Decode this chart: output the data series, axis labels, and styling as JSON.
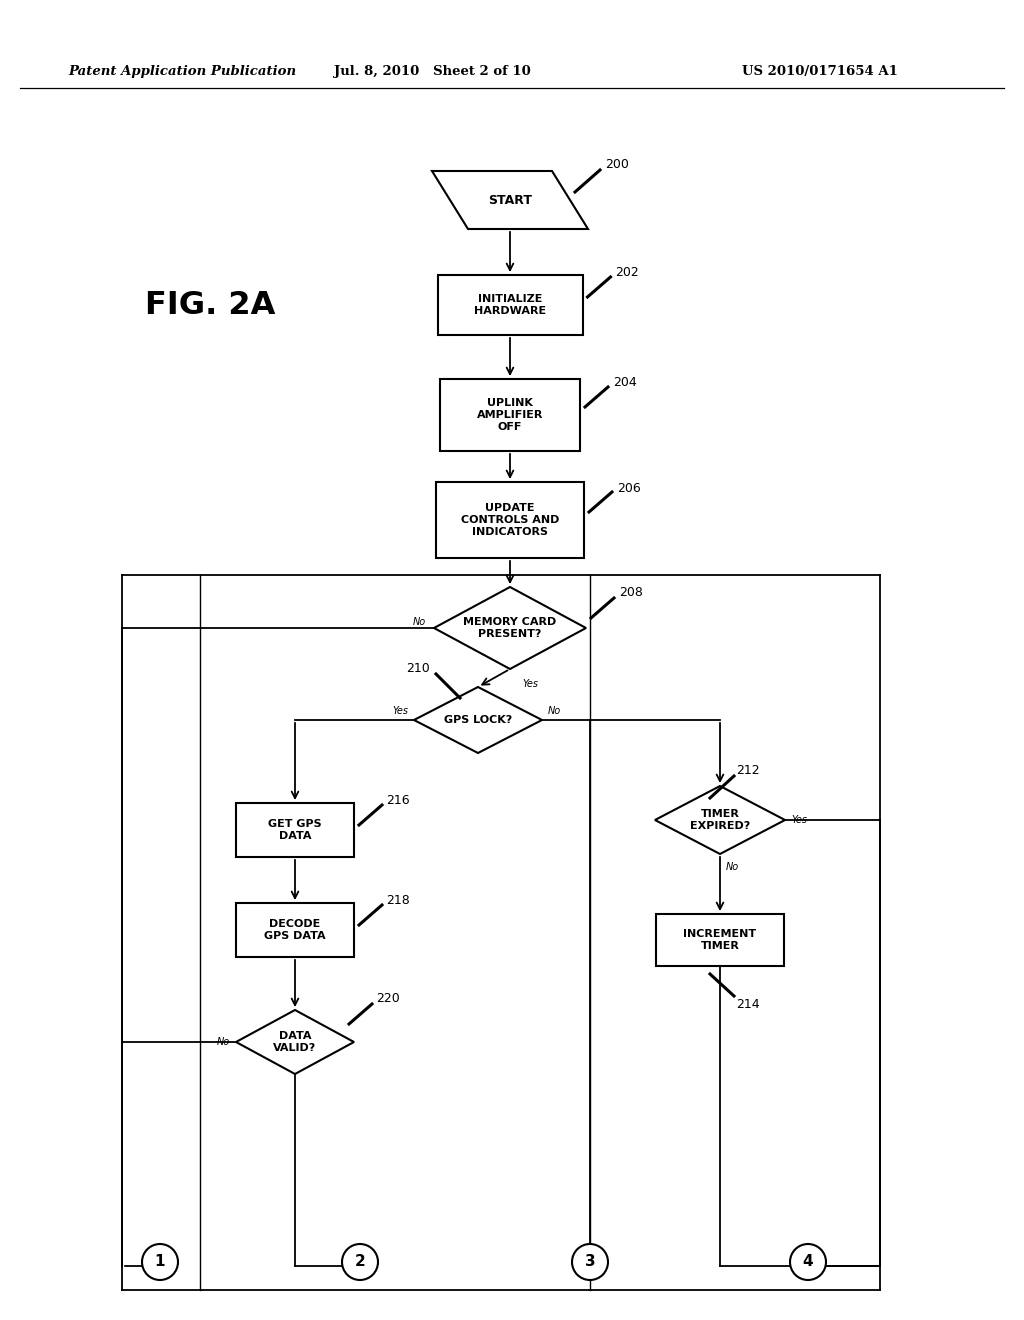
{
  "bg": "#ffffff",
  "header_left": "Patent Application Publication",
  "header_mid": "Jul. 8, 2010   Sheet 2 of 10",
  "header_right": "US 2010/0171654 A1",
  "fig_label": "FIG. 2A"
}
